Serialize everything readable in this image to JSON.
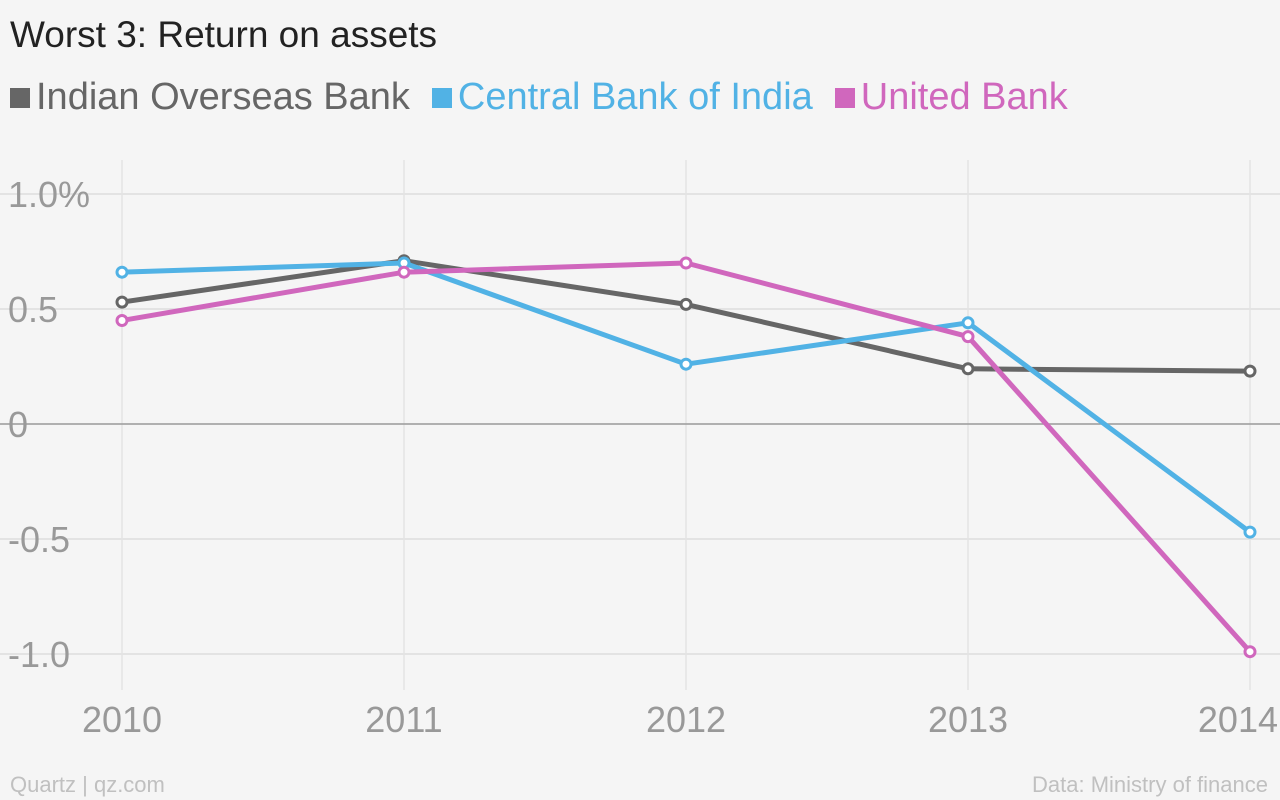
{
  "chart_data": {
    "type": "line",
    "title": "Worst 3: Return on assets",
    "xlabel": "",
    "ylabel": "",
    "x": [
      "2010",
      "2011",
      "2012",
      "2013",
      "2014"
    ],
    "ylim": [
      -1.15,
      1.15
    ],
    "y_ticks": [
      {
        "value": 1.0,
        "label": "1.0%"
      },
      {
        "value": 0.5,
        "label": "0.5"
      },
      {
        "value": 0,
        "label": "0"
      },
      {
        "value": -0.5,
        "label": "-0.5"
      },
      {
        "value": -1.0,
        "label": "-1.0"
      }
    ],
    "grid": true,
    "legend_position": "top-left",
    "series": [
      {
        "name": "Indian Overseas Bank",
        "color": "#666666",
        "values": [
          0.53,
          0.71,
          0.52,
          0.24,
          0.23
        ]
      },
      {
        "name": "Central Bank of India",
        "color": "#51b2e5",
        "values": [
          0.66,
          0.7,
          0.26,
          0.44,
          -0.47
        ]
      },
      {
        "name": "United Bank",
        "color": "#d067bd",
        "values": [
          0.45,
          0.66,
          0.7,
          0.38,
          -0.99
        ]
      }
    ]
  },
  "footer": {
    "source_left": "Quartz | qz.com",
    "source_right": "Data: Ministry of finance"
  }
}
